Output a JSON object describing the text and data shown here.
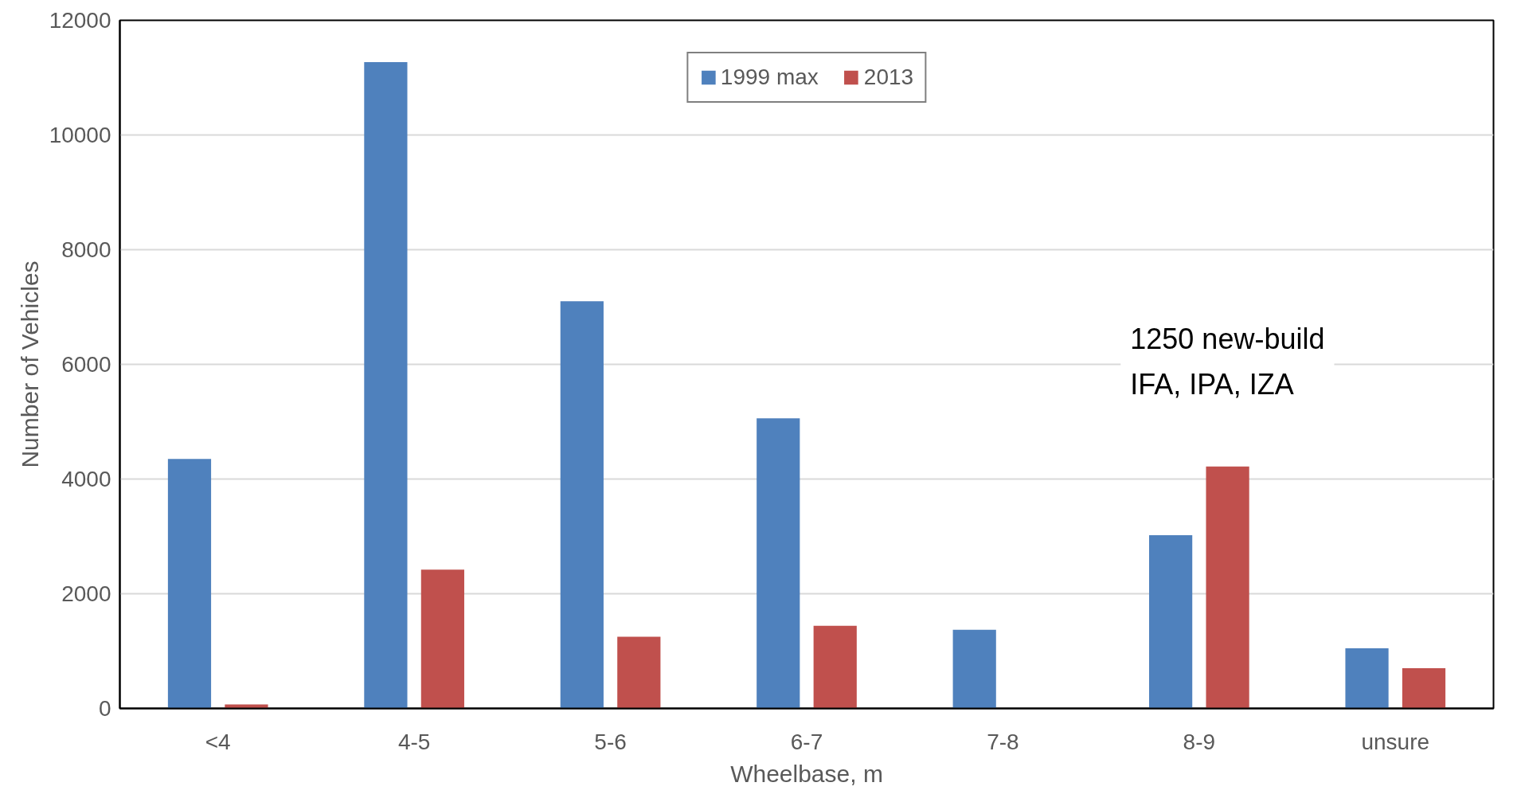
{
  "chart_data": {
    "type": "bar",
    "xlabel": "Wheelbase, m",
    "ylabel": "Number of Vehicles",
    "categories": [
      "<4",
      "4-5",
      "5-6",
      "6-7",
      "7-8",
      "8-9",
      "unsure"
    ],
    "series": [
      {
        "name": "1999 max",
        "color": "#4f81bd",
        "values": [
          4350,
          11270,
          7100,
          5060,
          1370,
          3020,
          1050
        ]
      },
      {
        "name": "2013",
        "color": "#c0504d",
        "values": [
          70,
          2420,
          1250,
          1440,
          null,
          4220,
          700
        ]
      }
    ],
    "ylim": [
      0,
      12000
    ],
    "yticks": [
      0,
      2000,
      4000,
      6000,
      8000,
      10000,
      12000
    ],
    "grid": "y",
    "legend": "top",
    "annotations": [
      "1250 new-build\nIFA, IPA, IZA"
    ]
  }
}
